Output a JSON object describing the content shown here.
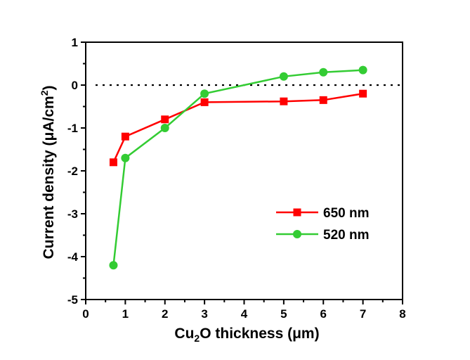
{
  "chart_data": {
    "type": "line",
    "title": "",
    "xlabel": {
      "prefix": "Cu",
      "sub": "2",
      "suffix": "O thickness (μm)"
    },
    "ylabel": {
      "prefix": "Current density (μA/cm",
      "sup": "2",
      "suffix": ")"
    },
    "xlim": [
      0,
      8
    ],
    "ylim": [
      -5,
      1
    ],
    "xticks": [
      "0",
      "1",
      "2",
      "3",
      "4",
      "5",
      "6",
      "7",
      "8"
    ],
    "yticks": [
      "-5",
      "-4",
      "-3",
      "-2",
      "-1",
      "0",
      "1"
    ],
    "reference_line": {
      "y": 0,
      "style": "dotted"
    },
    "legend_position": "right-middle",
    "series": [
      {
        "name": "650 nm",
        "color": "#ff0000",
        "marker": "square",
        "x": [
          0.7,
          1,
          2,
          3,
          5,
          6,
          7
        ],
        "y": [
          -1.8,
          -1.2,
          -0.8,
          -0.4,
          -0.38,
          -0.35,
          -0.2
        ]
      },
      {
        "name": "520 nm",
        "color": "#33cc33",
        "marker": "circle",
        "x": [
          0.7,
          1,
          2,
          3,
          5,
          6,
          7
        ],
        "y": [
          -4.2,
          -1.7,
          -1.0,
          -0.2,
          0.2,
          0.3,
          0.35
        ]
      }
    ]
  }
}
